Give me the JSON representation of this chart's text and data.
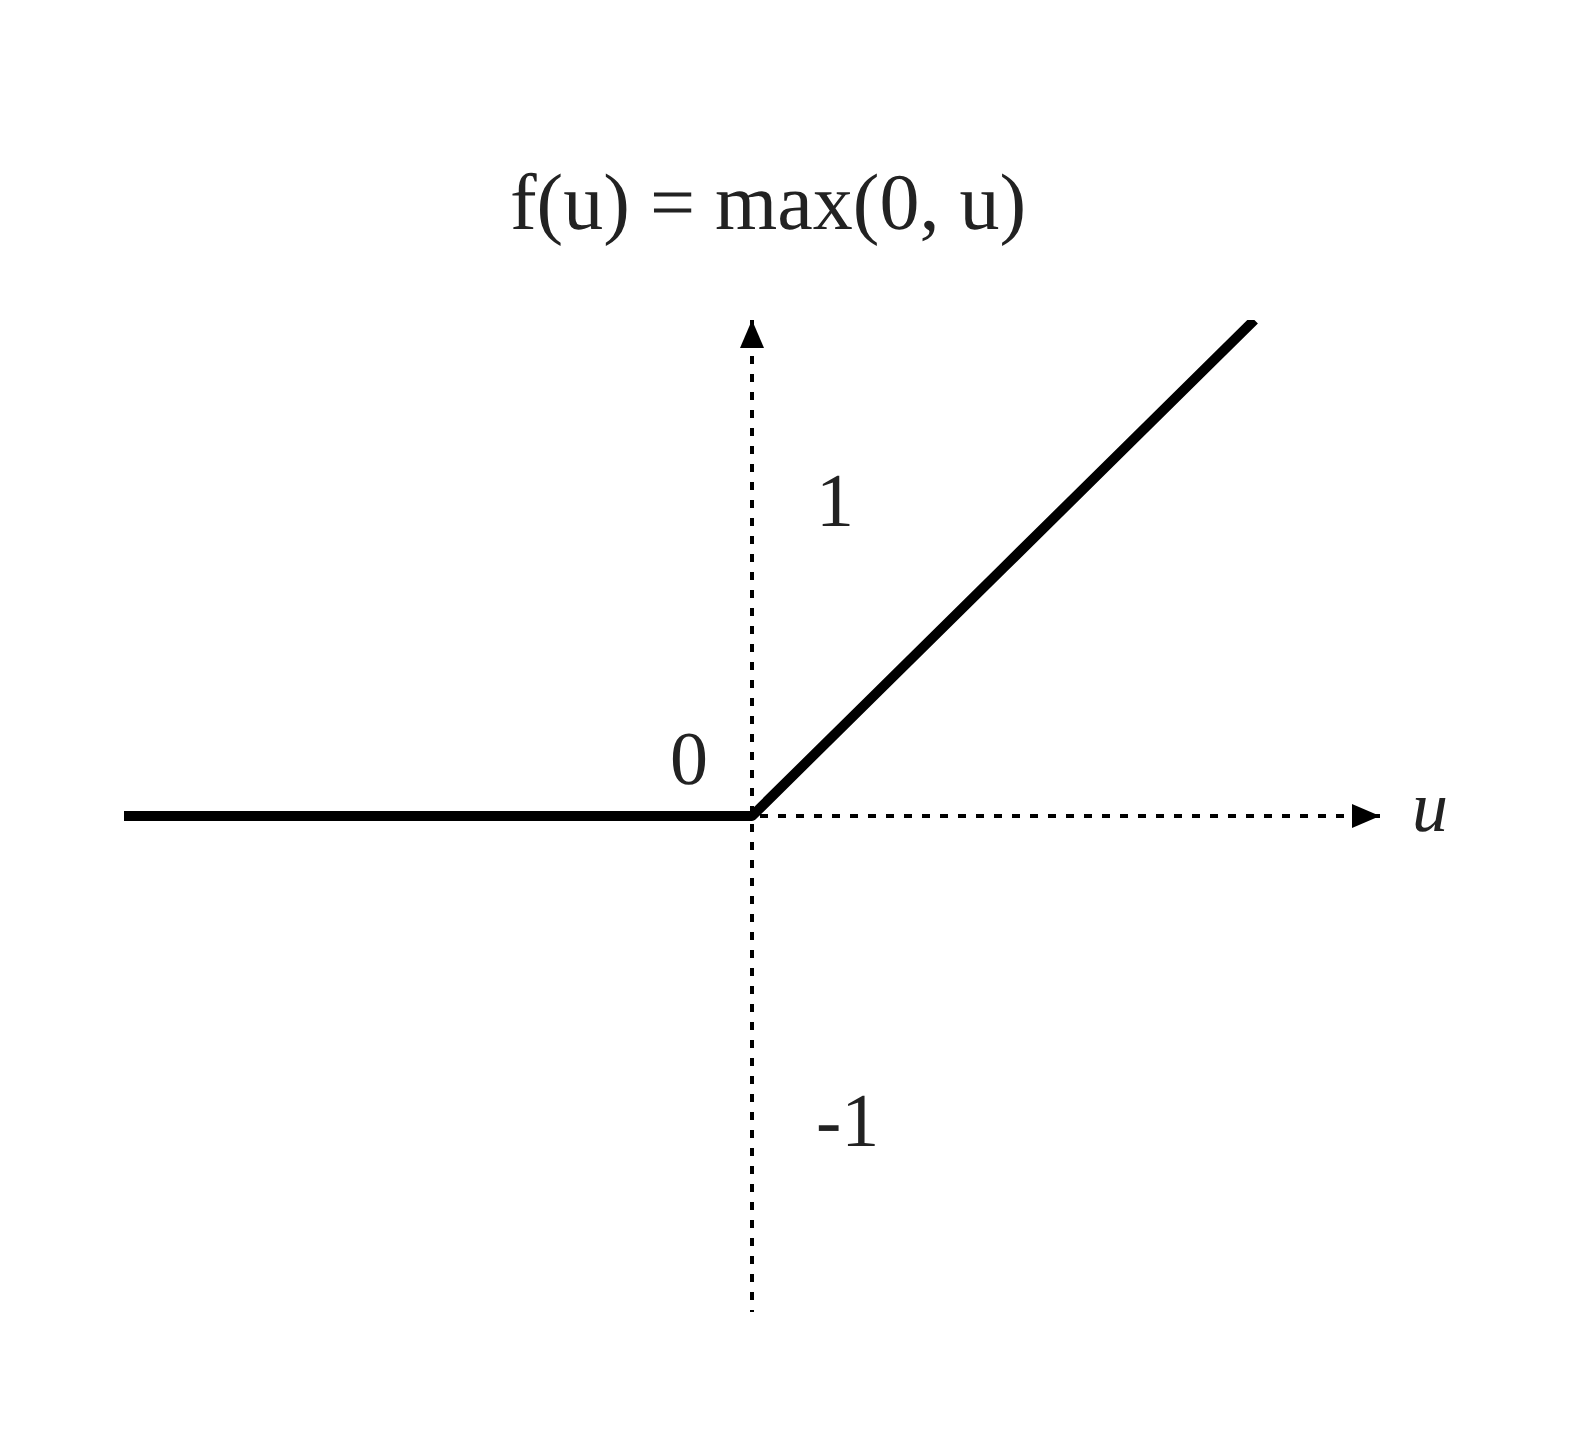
{
  "chart_data": {
    "type": "line",
    "title": "f(u) = max(0, u)",
    "xlabel": "u",
    "categories": [
      null,
      null,
      null,
      null,
      null,
      null,
      null,
      null,
      null,
      null,
      null
    ],
    "values": [
      0,
      0,
      0,
      0,
      0,
      0,
      0.4,
      0.8,
      1.2,
      1.6,
      null
    ],
    "color": "#000000",
    "ylim": [
      -1.6,
      1.6
    ],
    "yticks": [
      -1,
      1
    ],
    "tick_labels": "y",
    "annotations": [
      {
        "text": "0",
        "y": 0
      }
    ]
  }
}
